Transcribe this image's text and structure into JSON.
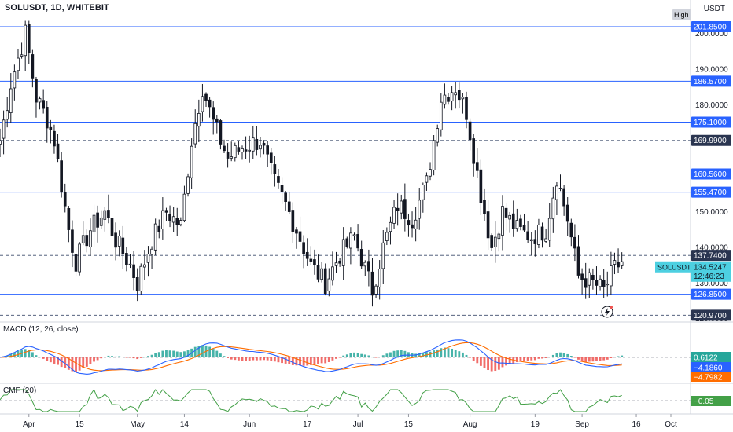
{
  "header": {
    "symbol_title": "SOLUSDT, 1D, WHITEBIT",
    "currency": "USDT"
  },
  "price_axis": {
    "ticks": [
      "200.0000",
      "190.0000",
      "180.0000",
      "170.0000",
      "160.0000",
      "150.0000",
      "140.0000",
      "130.0000",
      "120.0000"
    ],
    "high_badge": "High"
  },
  "levels": [
    {
      "label": "201.8500",
      "value": 201.85,
      "style": "solid"
    },
    {
      "label": "186.5700",
      "value": 186.57,
      "style": "solid"
    },
    {
      "label": "175.1000",
      "value": 175.1,
      "style": "solid"
    },
    {
      "label": "169.9900",
      "value": 169.99,
      "style": "dashed"
    },
    {
      "label": "160.5600",
      "value": 160.56,
      "style": "solid"
    },
    {
      "label": "155.4700",
      "value": 155.47,
      "style": "solid"
    },
    {
      "label": "137.7400",
      "value": 137.74,
      "style": "dashed"
    },
    {
      "label": "126.8500",
      "value": 126.85,
      "style": "solid"
    },
    {
      "label": "120.9700",
      "value": 120.97,
      "style": "dashed"
    }
  ],
  "last_price": {
    "symbol": "SOLUSDT",
    "price": "134.5247",
    "countdown": "12:46:23",
    "color": "#4dd0e1"
  },
  "x_axis": {
    "labels": [
      "Apr",
      "15",
      "May",
      "14",
      "Jun",
      "17",
      "Jul",
      "15",
      "Aug",
      "19",
      "Sep",
      "16",
      "Oct"
    ]
  },
  "macd": {
    "label": "MACD (12, 26, close)",
    "values": [
      "0.6122",
      "−4.1860",
      "−4.7982"
    ],
    "colors": [
      "#26a69a",
      "#2962ff",
      "#ff6d00"
    ]
  },
  "cmf": {
    "label": "CMF (20)",
    "value": "−0.05",
    "color": "#43a047"
  },
  "colors": {
    "level_line": "#2962ff",
    "candle": "#131722",
    "up_body": "#ffffff",
    "macd_line": "#2962ff",
    "signal_line": "#ff6d00",
    "hist_up": "#26a69a",
    "hist_down": "#ef5350",
    "cmf_line": "#43a047"
  },
  "chart_data": {
    "type": "candlestick",
    "series_name": "SOLUSDT",
    "x_range": [
      "2024-03-24",
      "2024-10-01"
    ],
    "ylim": [
      119.5,
      204.5
    ],
    "anchors": [
      {
        "date": "2024-03-24",
        "close": 170
      },
      {
        "date": "2024-03-27",
        "close": 186
      },
      {
        "date": "2024-03-31",
        "close": 200
      },
      {
        "date": "2024-04-03",
        "close": 182
      },
      {
        "date": "2024-04-06",
        "close": 176
      },
      {
        "date": "2024-04-08",
        "close": 170
      },
      {
        "date": "2024-04-12",
        "close": 145
      },
      {
        "date": "2024-04-14",
        "close": 136
      },
      {
        "date": "2024-04-18",
        "close": 145
      },
      {
        "date": "2024-04-22",
        "close": 150
      },
      {
        "date": "2024-04-25",
        "close": 142
      },
      {
        "date": "2024-04-29",
        "close": 135
      },
      {
        "date": "2024-05-01",
        "close": 130
      },
      {
        "date": "2024-05-05",
        "close": 142
      },
      {
        "date": "2024-05-09",
        "close": 150
      },
      {
        "date": "2024-05-13",
        "close": 146
      },
      {
        "date": "2024-05-16",
        "close": 170
      },
      {
        "date": "2024-05-19",
        "close": 185
      },
      {
        "date": "2024-05-22",
        "close": 175
      },
      {
        "date": "2024-05-26",
        "close": 165
      },
      {
        "date": "2024-05-30",
        "close": 168
      },
      {
        "date": "2024-06-04",
        "close": 170
      },
      {
        "date": "2024-06-08",
        "close": 158
      },
      {
        "date": "2024-06-11",
        "close": 152
      },
      {
        "date": "2024-06-14",
        "close": 145
      },
      {
        "date": "2024-06-18",
        "close": 135
      },
      {
        "date": "2024-06-22",
        "close": 130
      },
      {
        "date": "2024-06-26",
        "close": 138
      },
      {
        "date": "2024-06-30",
        "close": 143
      },
      {
        "date": "2024-07-05",
        "close": 128
      },
      {
        "date": "2024-07-08",
        "close": 140
      },
      {
        "date": "2024-07-12",
        "close": 152
      },
      {
        "date": "2024-07-16",
        "close": 148
      },
      {
        "date": "2024-07-20",
        "close": 158
      },
      {
        "date": "2024-07-24",
        "close": 182
      },
      {
        "date": "2024-07-28",
        "close": 185
      },
      {
        "date": "2024-07-31",
        "close": 178
      },
      {
        "date": "2024-08-04",
        "close": 155
      },
      {
        "date": "2024-08-07",
        "close": 140
      },
      {
        "date": "2024-08-10",
        "close": 150
      },
      {
        "date": "2024-08-14",
        "close": 145
      },
      {
        "date": "2024-08-18",
        "close": 143
      },
      {
        "date": "2024-08-22",
        "close": 145
      },
      {
        "date": "2024-08-25",
        "close": 160
      },
      {
        "date": "2024-08-28",
        "close": 148
      },
      {
        "date": "2024-08-31",
        "close": 132
      },
      {
        "date": "2024-09-04",
        "close": 130
      },
      {
        "date": "2024-09-07",
        "close": 128
      },
      {
        "date": "2024-09-10",
        "close": 134
      },
      {
        "date": "2024-09-12",
        "close": 136
      }
    ]
  }
}
